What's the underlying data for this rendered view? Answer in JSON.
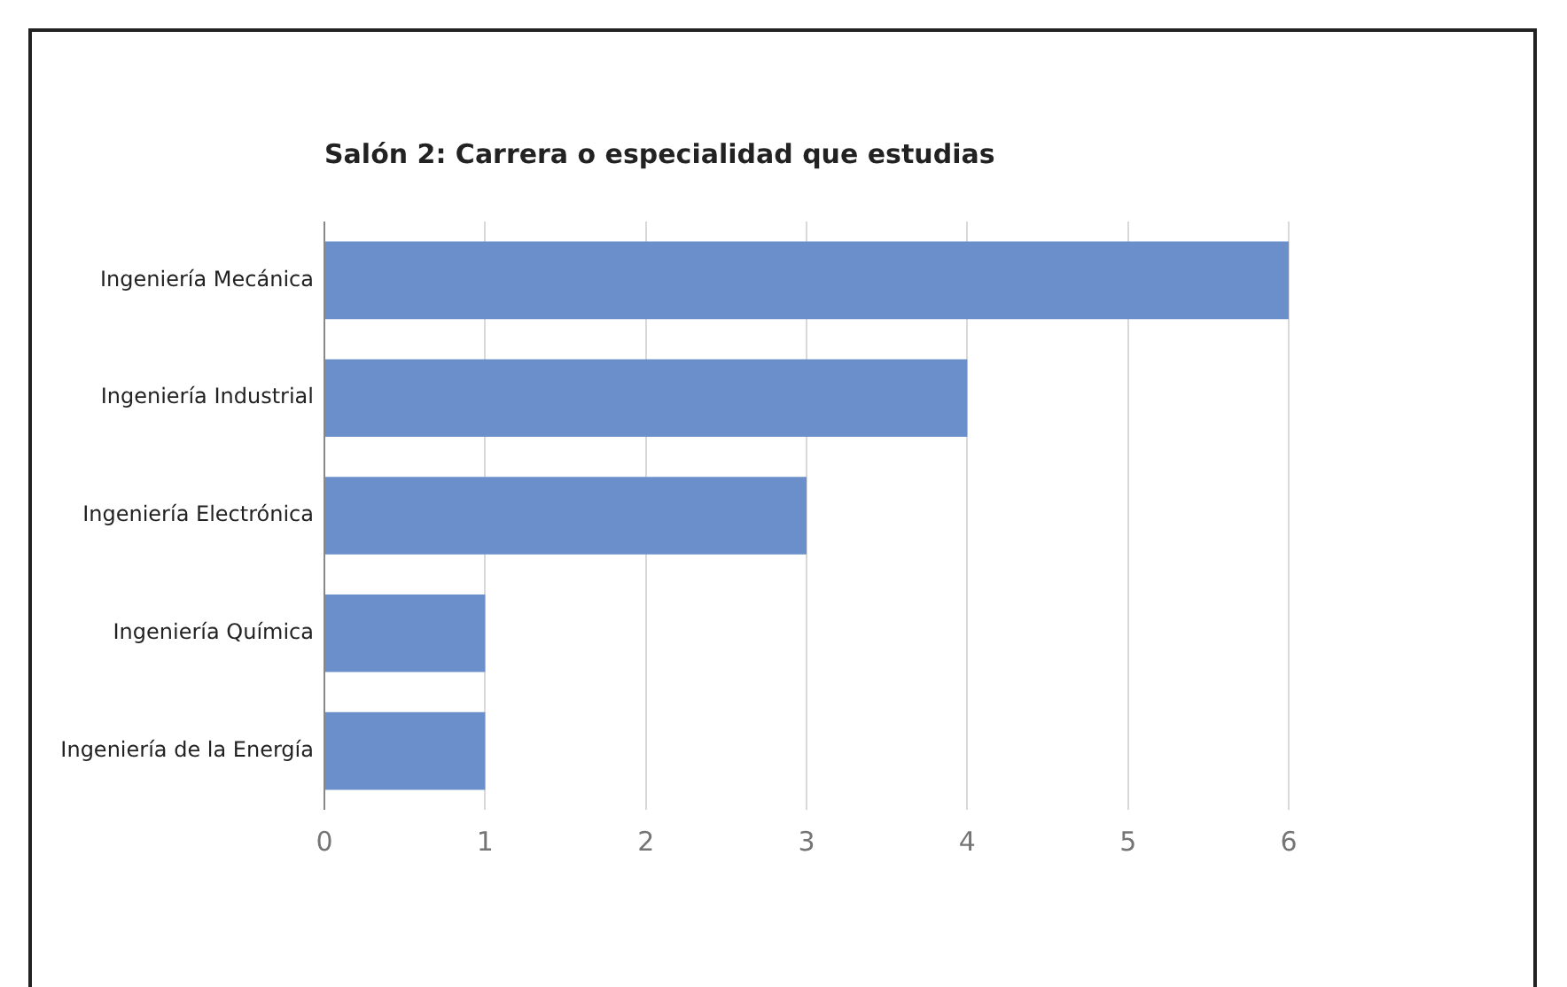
{
  "chart_data": {
    "type": "bar",
    "orientation": "horizontal",
    "title": "Salón 2: Carrera o especialidad que estudias",
    "categories": [
      "Ingeniería Mecánica",
      "Ingeniería Industrial",
      "Ingeniería Electrónica",
      "Ingeniería Química",
      "Ingeniería de la Energía"
    ],
    "values": [
      6,
      4,
      3,
      1,
      1
    ],
    "color": "#6a8fcb",
    "xlim": [
      0,
      6
    ],
    "xticks": [
      0,
      1,
      2,
      3,
      4,
      5,
      6
    ],
    "grid": "x",
    "legend": false
  }
}
